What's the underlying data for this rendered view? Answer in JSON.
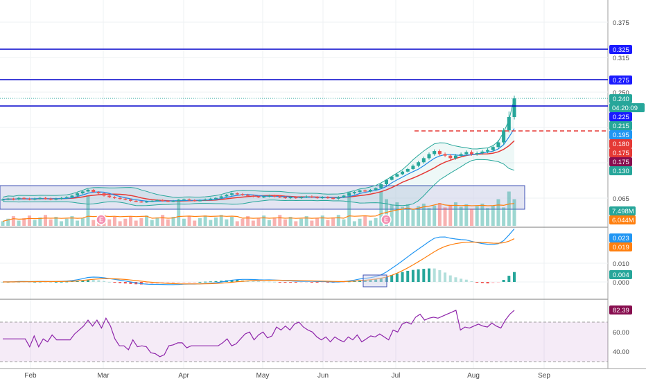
{
  "chart_data": [
    {
      "type": "line",
      "pane": "price",
      "title": "",
      "xlabel": "",
      "ylabel": "",
      "x_ticks": [
        "Feb",
        "Mar",
        "Apr",
        "May",
        "Jun",
        "Jul",
        "Aug",
        "Sep"
      ],
      "y_ticks": [
        "0.375",
        "0.315",
        "0.250",
        "0.065"
      ],
      "series": [
        {
          "type": "candlestick",
          "close_path": [
            0.061,
            0.062,
            0.061,
            0.063,
            0.062,
            0.061,
            0.062,
            0.063,
            0.062,
            0.061,
            0.062,
            0.063,
            0.064,
            0.066,
            0.069,
            0.072,
            0.075,
            0.071,
            0.069,
            0.066,
            0.064,
            0.063,
            0.062,
            0.061,
            0.059,
            0.058,
            0.057,
            0.058,
            0.059,
            0.06,
            0.059,
            0.058,
            0.059,
            0.06,
            0.061,
            0.06,
            0.059,
            0.06,
            0.061,
            0.062,
            0.063,
            0.065,
            0.067,
            0.069,
            0.068,
            0.067,
            0.066,
            0.065,
            0.064,
            0.065,
            0.066,
            0.065,
            0.064,
            0.063,
            0.064,
            0.063,
            0.064,
            0.065,
            0.064,
            0.063,
            0.064,
            0.063,
            0.062,
            0.064,
            0.066,
            0.069,
            0.071,
            0.074,
            0.072,
            0.075,
            0.078,
            0.085,
            0.095,
            0.105,
            0.112,
            0.12,
            0.128,
            0.135,
            0.142,
            0.15,
            0.158,
            0.164,
            0.158,
            0.155,
            0.15,
            0.155,
            0.158,
            0.162,
            0.158,
            0.16,
            0.163,
            0.166,
            0.172,
            0.18,
            0.2,
            0.225,
            0.24
          ]
        },
        {
          "type": "bollinger-bands",
          "color": "#26a69a"
        },
        {
          "type": "moving-average",
          "color": "#e53935"
        },
        {
          "type": "moving-average",
          "color": "#1e88e5"
        }
      ],
      "horizontal_levels": [
        {
          "value": 0.325,
          "color": "#0000cc",
          "style": "solid"
        },
        {
          "value": 0.275,
          "color": "#0000cc",
          "style": "solid"
        },
        {
          "value": 0.225,
          "color": "#0000cc",
          "style": "solid"
        },
        {
          "value": 0.195,
          "color": "#e53935",
          "style": "dashed"
        }
      ],
      "price_badges": [
        {
          "label": "0.325",
          "color": "#1a1aff"
        },
        {
          "label": "0.275",
          "color": "#1a1aff"
        },
        {
          "label": "0.240",
          "color": "#26a69a"
        },
        {
          "label": "04:20:09",
          "color": "#26a69a"
        },
        {
          "label": "0.225",
          "color": "#1a1aff"
        },
        {
          "label": "0.215",
          "color": "#26a69a"
        },
        {
          "label": "0.195",
          "color": "#2196f3"
        },
        {
          "label": "0.180",
          "color": "#e53935"
        },
        {
          "label": "0.175",
          "color": "#e53935"
        },
        {
          "label": "0.175",
          "color": "#880e4f"
        },
        {
          "label": "0.130",
          "color": "#26a69a"
        }
      ],
      "events": [
        {
          "label": "E"
        },
        {
          "label": "E"
        }
      ]
    },
    {
      "type": "bar",
      "pane": "volume",
      "series": [
        {
          "type": "volume"
        },
        {
          "type": "volume-ma",
          "color": "#ff7f0e"
        }
      ],
      "badges": [
        {
          "label": "7.498M",
          "color": "#26a69a"
        },
        {
          "label": "6.044M",
          "color": "#ff7f0e"
        }
      ]
    },
    {
      "type": "bar",
      "pane": "macd",
      "y_ticks": [
        "0.010",
        "0.000"
      ],
      "series": [
        {
          "type": "histogram"
        },
        {
          "type": "macd-line",
          "color": "#2196f3"
        },
        {
          "type": "signal-line",
          "color": "#ff7f0e"
        }
      ],
      "badges": [
        {
          "label": "0.023",
          "color": "#2196f3"
        },
        {
          "label": "0.019",
          "color": "#ff7f0e"
        },
        {
          "label": "0.004",
          "color": "#26a69a"
        }
      ]
    },
    {
      "type": "line",
      "pane": "rsi",
      "y_ticks": [
        "60.00",
        "40.00"
      ],
      "ylim": [
        30,
        90
      ],
      "bands": [
        30,
        70
      ],
      "series": [
        {
          "type": "rsi",
          "color": "#8e24aa",
          "values": [
            53,
            53,
            53,
            53,
            53,
            53,
            45,
            56,
            45,
            53,
            50,
            57,
            52,
            52,
            52,
            52,
            58,
            62,
            66,
            72,
            66,
            72,
            64,
            74,
            66,
            53,
            46,
            46,
            42,
            52,
            45,
            46,
            45,
            39,
            38,
            35,
            37,
            46,
            47,
            49,
            49,
            44,
            46,
            46,
            46,
            46,
            46,
            46,
            46,
            49,
            53,
            46,
            48,
            53,
            58,
            60,
            52,
            57,
            60,
            54,
            56,
            65,
            62,
            66,
            62,
            68,
            70,
            65,
            62,
            60,
            55,
            52,
            55,
            50,
            55,
            52,
            50,
            55,
            52,
            57,
            50,
            53,
            56,
            55,
            58,
            55,
            52,
            62,
            60,
            68,
            70,
            68,
            75,
            78,
            72,
            74,
            75,
            74,
            76,
            78,
            80,
            82,
            62,
            65,
            64,
            66,
            68,
            66,
            65,
            69,
            66,
            64,
            72,
            78,
            82
          ]
        }
      ],
      "badges": [
        {
          "label": "82.39",
          "color": "#880e4f"
        }
      ]
    }
  ]
}
